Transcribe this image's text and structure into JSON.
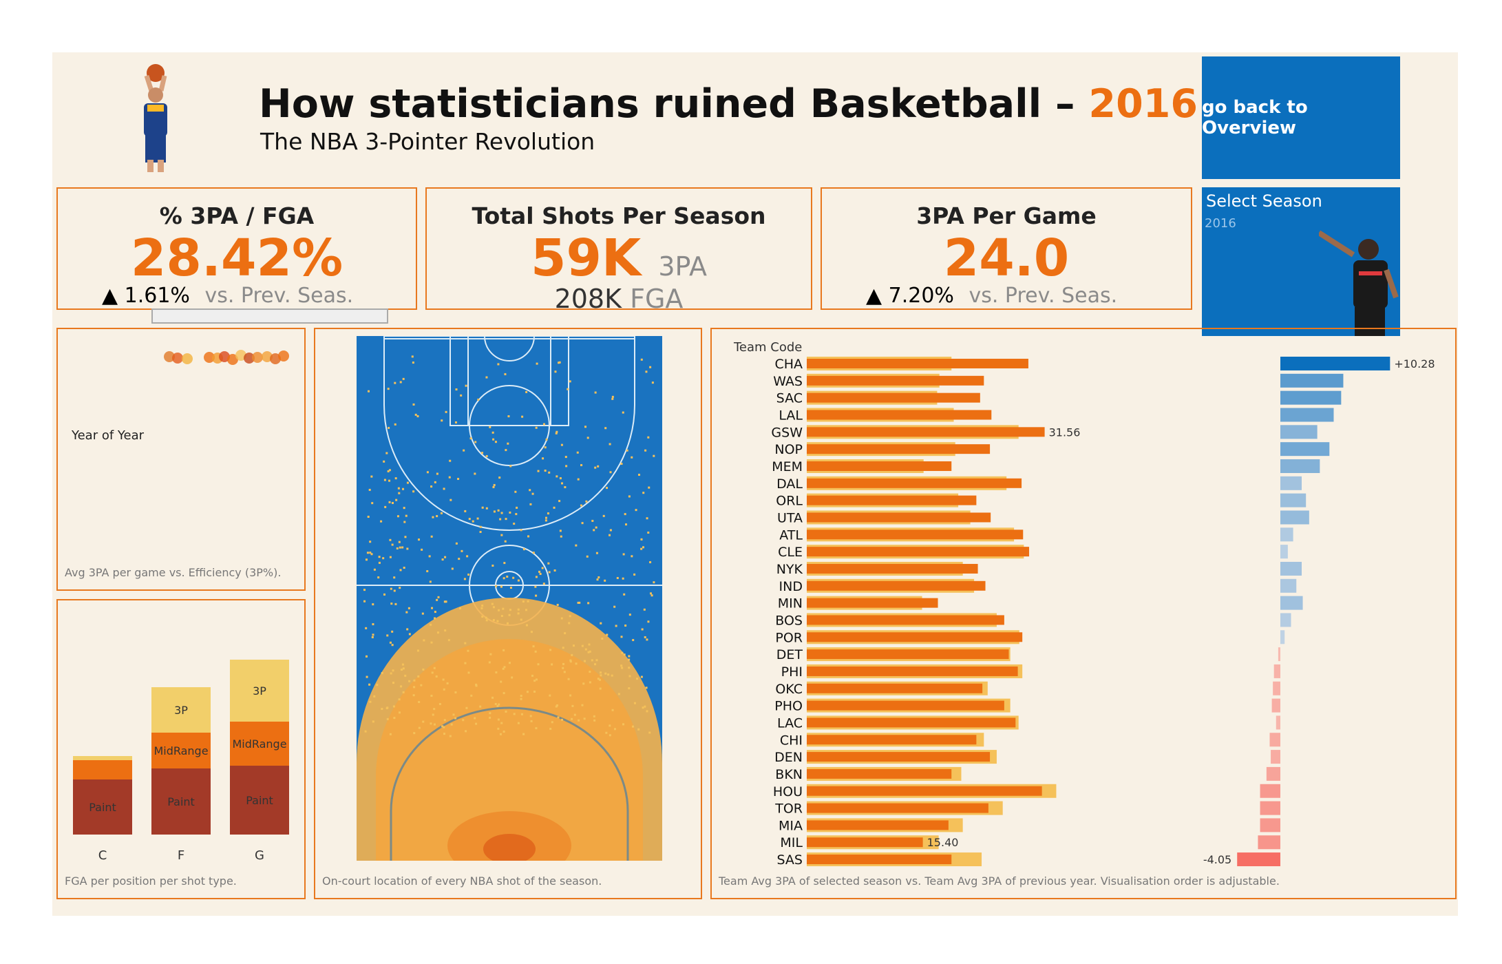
{
  "header": {
    "title": "How statisticians ruined Basketball –",
    "title_year": "2016",
    "subtitle": "The NBA 3-Pointer Revolution",
    "nav_button": "go back to Overview"
  },
  "colors": {
    "accent": "#ec6f12",
    "blue": "#0b6fbd",
    "bg": "#f8f1e5",
    "light_orange": "#f5c15a",
    "paint": "#a33a28",
    "three": "#f2cf6a"
  },
  "kpis": {
    "pct": {
      "title": "% 3PA / FGA",
      "value": "28.42%",
      "delta": "▲ 1.61%",
      "delta_label": "vs. Prev. Seas."
    },
    "total": {
      "title": "Total Shots Per Season",
      "value": "59K",
      "value_unit": "3PA",
      "secondary": "208K",
      "secondary_unit": "FGA"
    },
    "per_game": {
      "title": "3PA Per Game",
      "value": "24.0",
      "delta": "▲ 7.20%",
      "delta_label": "vs. Prev. Seas."
    }
  },
  "season_filter": {
    "label": "Select Season",
    "value": "2016"
  },
  "year_panel": {
    "label": "Year of Year",
    "note": "Avg 3PA per game vs. Efficiency (3P%)."
  },
  "court_panel": {
    "note": "On-court location of every NBA shot of the season."
  },
  "team_panel": {
    "header": "Team Code",
    "note": "Team Avg 3PA of selected season vs. Team Avg 3PA of previous year. Visualisation order is adjustable."
  },
  "position_panel": {
    "note": "FGA per position per shot type."
  },
  "chart_data": [
    {
      "type": "bar",
      "name": "fga_per_position",
      "categories": [
        "C",
        "F",
        "G"
      ],
      "series": [
        {
          "name": "Paint",
          "values": [
            40,
            48,
            50
          ]
        },
        {
          "name": "MidRange",
          "values": [
            14,
            26,
            32
          ]
        },
        {
          "name": "3P",
          "values": [
            3,
            33,
            45
          ]
        }
      ],
      "stacked": true
    },
    {
      "type": "bar",
      "name": "team_3pa",
      "categories": [
        "CHA",
        "WAS",
        "SAC",
        "LAL",
        "GSW",
        "NOP",
        "MEM",
        "DAL",
        "ORL",
        "UTA",
        "ATL",
        "CLE",
        "NYK",
        "IND",
        "MIN",
        "BOS",
        "POR",
        "DET",
        "PHI",
        "OKC",
        "PHO",
        "LAC",
        "CHI",
        "DEN",
        "BKN",
        "HOU",
        "TOR",
        "MIA",
        "MIL",
        "SAS"
      ],
      "series": [
        {
          "name": "selected",
          "values": [
            29.4,
            23.5,
            23.0,
            24.5,
            31.56,
            24.3,
            19.2,
            28.5,
            22.5,
            24.4,
            28.7,
            29.5,
            22.7,
            23.7,
            17.4,
            26.2,
            28.6,
            26.8,
            28.0,
            23.3,
            26.2,
            27.7,
            22.5,
            24.3,
            19.2,
            31.2,
            24.1,
            18.8,
            15.4,
            19.2
          ]
        },
        {
          "name": "previous",
          "values": [
            19.2,
            17.6,
            17.3,
            19.5,
            28.1,
            19.7,
            15.5,
            26.5,
            20.1,
            21.7,
            27.5,
            28.8,
            20.7,
            22.2,
            15.3,
            25.2,
            28.2,
            27.0,
            28.6,
            24.0,
            27.0,
            28.1,
            23.5,
            25.2,
            20.5,
            33.1,
            26.0,
            20.7,
            17.5,
            23.2
          ]
        }
      ],
      "labels": {
        "GSW": "31.56",
        "MIL": "15.40"
      }
    },
    {
      "type": "bar",
      "name": "team_3pa_change",
      "categories": [
        "CHA",
        "WAS",
        "SAC",
        "LAL",
        "GSW",
        "NOP",
        "MEM",
        "DAL",
        "ORL",
        "UTA",
        "ATL",
        "CLE",
        "NYK",
        "IND",
        "MIN",
        "BOS",
        "POR",
        "DET",
        "PHI",
        "OKC",
        "PHO",
        "LAC",
        "CHI",
        "DEN",
        "BKN",
        "HOU",
        "TOR",
        "MIA",
        "MIL",
        "SAS"
      ],
      "values": [
        10.28,
        5.9,
        5.7,
        5.0,
        3.46,
        4.6,
        3.7,
        2.0,
        2.4,
        2.7,
        1.2,
        0.7,
        2.0,
        1.5,
        2.1,
        1.0,
        0.4,
        -0.2,
        -0.6,
        -0.7,
        -0.8,
        -0.4,
        -1.0,
        -0.9,
        -1.3,
        -1.9,
        -1.9,
        -1.9,
        -2.1,
        -4.05
      ],
      "labels": {
        "CHA": "+10.28",
        "SAS": "-4.05"
      }
    }
  ]
}
